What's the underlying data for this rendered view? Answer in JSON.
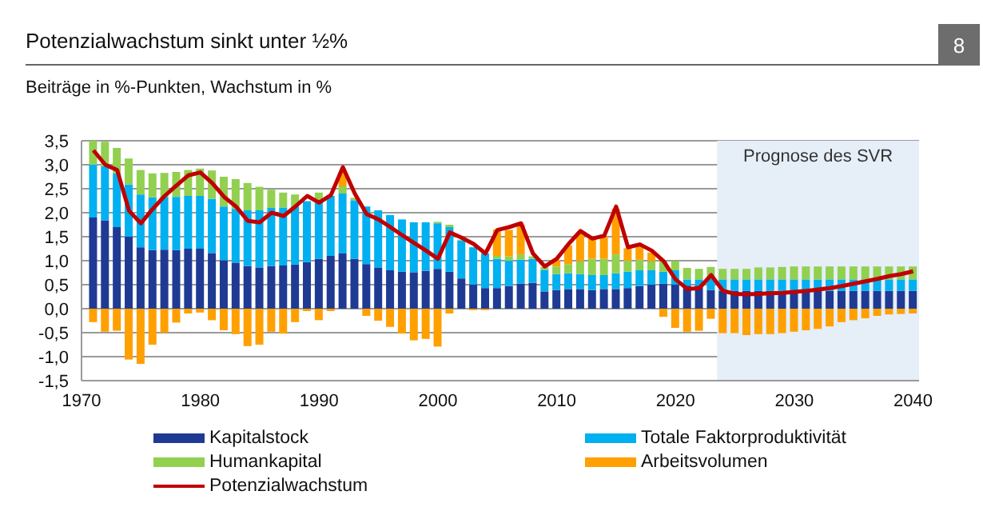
{
  "chart_data": {
    "type": "bar",
    "title": "Potenzialwachstum sinkt unter ½%",
    "subtitle": "Beiträge in %-Punkten, Wachstum in %",
    "annotations": [
      "8"
    ],
    "x": [
      1971,
      1972,
      1973,
      1974,
      1975,
      1976,
      1977,
      1978,
      1979,
      1980,
      1981,
      1982,
      1983,
      1984,
      1985,
      1986,
      1987,
      1988,
      1989,
      1990,
      1991,
      1992,
      1993,
      1994,
      1995,
      1996,
      1997,
      1998,
      1999,
      2000,
      2001,
      2002,
      2003,
      2004,
      2005,
      2006,
      2007,
      2008,
      2009,
      2010,
      2011,
      2012,
      2013,
      2014,
      2015,
      2016,
      2017,
      2018,
      2019,
      2020,
      2021,
      2022,
      2023,
      2024,
      2025,
      2026,
      2027,
      2028,
      2029,
      2030,
      2031,
      2032,
      2033,
      2034,
      2035,
      2036,
      2037,
      2038,
      2039,
      2040
    ],
    "stacked": true,
    "series": [
      {
        "name": "Kapitalstock",
        "color": "#1f3a93",
        "values": [
          1.9,
          1.84,
          1.7,
          1.5,
          1.28,
          1.22,
          1.23,
          1.22,
          1.25,
          1.25,
          1.16,
          1.01,
          0.96,
          0.89,
          0.86,
          0.89,
          0.9,
          0.92,
          0.97,
          1.04,
          1.1,
          1.15,
          1.04,
          0.93,
          0.86,
          0.8,
          0.77,
          0.76,
          0.79,
          0.83,
          0.77,
          0.63,
          0.5,
          0.43,
          0.43,
          0.47,
          0.52,
          0.54,
          0.36,
          0.39,
          0.41,
          0.41,
          0.39,
          0.41,
          0.41,
          0.43,
          0.47,
          0.5,
          0.52,
          0.5,
          0.48,
          0.48,
          0.39,
          0.37,
          0.37,
          0.37,
          0.37,
          0.37,
          0.37,
          0.37,
          0.37,
          0.37,
          0.37,
          0.37,
          0.37,
          0.37,
          0.37,
          0.37,
          0.37,
          0.37
        ]
      },
      {
        "name": "Totale Faktorproduktivität",
        "color": "#00b0f0",
        "values": [
          1.1,
          1.13,
          1.12,
          1.09,
          1.1,
          1.1,
          1.1,
          1.11,
          1.1,
          1.1,
          1.13,
          1.12,
          1.12,
          1.16,
          1.19,
          1.21,
          1.21,
          1.21,
          1.27,
          1.22,
          1.25,
          1.25,
          1.22,
          1.2,
          1.19,
          1.15,
          1.09,
          1.04,
          1.01,
          0.95,
          0.93,
          0.79,
          0.78,
          0.72,
          0.61,
          0.53,
          0.5,
          0.5,
          0.45,
          0.33,
          0.33,
          0.31,
          0.31,
          0.29,
          0.33,
          0.34,
          0.33,
          0.3,
          0.25,
          0.3,
          0.13,
          0.13,
          0.24,
          0.24,
          0.24,
          0.24,
          0.24,
          0.24,
          0.24,
          0.24,
          0.24,
          0.24,
          0.24,
          0.24,
          0.24,
          0.24,
          0.24,
          0.24,
          0.24,
          0.24
        ]
      },
      {
        "name": "Humankapital",
        "color": "#92d050",
        "values": [
          0.5,
          0.51,
          0.53,
          0.54,
          0.51,
          0.5,
          0.5,
          0.52,
          0.54,
          0.57,
          0.59,
          0.62,
          0.62,
          0.57,
          0.49,
          0.38,
          0.31,
          0.25,
          null,
          0.16,
          null,
          0.15,
          0.05,
          0,
          0,
          0,
          0,
          0,
          0,
          0.03,
          0.05,
          0.02,
          null,
          0,
          0.06,
          0.09,
          0.11,
          0.05,
          0.06,
          0.16,
          0.19,
          0.27,
          0.34,
          0.34,
          0.39,
          0.23,
          0.22,
          0.19,
          0.22,
          0.19,
          0.24,
          0.22,
          0.24,
          0.22,
          0.22,
          0.22,
          0.25,
          0.25,
          0.26,
          0.27,
          0.27,
          0.27,
          0.27,
          0.27,
          0.27,
          0.27,
          0.27,
          0.27,
          0.27,
          0.27
        ]
      },
      {
        "name": "Arbeitsvolumen",
        "color": "#ffa000",
        "values": [
          -0.28,
          -0.48,
          -0.46,
          -1.06,
          -1.15,
          -0.75,
          -0.5,
          -0.29,
          -0.1,
          -0.08,
          -0.24,
          -0.45,
          -0.53,
          -0.78,
          -0.75,
          -0.48,
          -0.52,
          -0.28,
          -0.05,
          -0.24,
          -0.05,
          0.3,
          null,
          -0.15,
          -0.25,
          -0.38,
          -0.52,
          -0.66,
          -0.63,
          -0.79,
          -0.1,
          0,
          -0.03,
          -0.03,
          0.55,
          0.55,
          0.62,
          null,
          0,
          0.14,
          0.39,
          0.6,
          0.42,
          0.46,
          0.95,
          0.26,
          0.3,
          0.18,
          -0.17,
          -0.4,
          -0.48,
          -0.46,
          -0.21,
          -0.51,
          -0.51,
          -0.55,
          -0.53,
          -0.53,
          -0.51,
          -0.48,
          -0.45,
          -0.42,
          -0.37,
          -0.28,
          -0.24,
          -0.2,
          -0.15,
          -0.12,
          -0.11,
          -0.1
        ]
      },
      {
        "name": "Potenzialwachstum",
        "type": "line",
        "color": "#c00000",
        "values": [
          3.3,
          3.0,
          2.89,
          2.04,
          1.78,
          2.08,
          2.35,
          2.57,
          2.78,
          2.84,
          2.62,
          2.33,
          2.13,
          1.83,
          1.8,
          2.0,
          1.93,
          2.13,
          2.35,
          2.21,
          2.37,
          2.95,
          2.4,
          1.97,
          1.86,
          1.7,
          1.53,
          1.37,
          1.21,
          1.04,
          1.59,
          1.48,
          1.35,
          1.15,
          1.64,
          1.7,
          1.78,
          1.15,
          0.88,
          1.04,
          1.35,
          1.62,
          1.46,
          1.52,
          2.13,
          1.28,
          1.34,
          1.21,
          0.99,
          0.61,
          0.41,
          0.43,
          0.7,
          0.37,
          0.31,
          0.3,
          0.31,
          0.32,
          0.33,
          0.35,
          0.37,
          0.4,
          0.43,
          0.47,
          0.52,
          0.57,
          0.62,
          0.68,
          0.72,
          0.78
        ]
      }
    ],
    "xlim": [
      1970,
      2040.5
    ],
    "xticks": [
      1970,
      1980,
      1990,
      2000,
      2010,
      2020,
      2030,
      2040
    ],
    "ylim": [
      -1.5,
      3.5
    ],
    "yticks": [
      {
        "value": -1.5,
        "label": "-1,5"
      },
      {
        "value": -1,
        "label": "-1,0"
      },
      {
        "value": -0.5,
        "label": "-0,5"
      },
      {
        "value": 0,
        "label": "0,0"
      },
      {
        "value": 0.5,
        "label": "0,5"
      },
      {
        "value": 1,
        "label": "1,0"
      },
      {
        "value": 1.5,
        "label": "1,5"
      },
      {
        "value": 2,
        "label": "2,0"
      },
      {
        "value": 2.5,
        "label": "2,5"
      },
      {
        "value": 3,
        "label": "3,0"
      },
      {
        "value": 3.5,
        "label": "3,5"
      }
    ],
    "bands": [
      {
        "axis": "x",
        "from": 2023.5,
        "to": 2040.5,
        "label": "Prognose des SVR",
        "color": "#e6eef8"
      }
    ],
    "grid": "y",
    "legend": "bottom"
  }
}
